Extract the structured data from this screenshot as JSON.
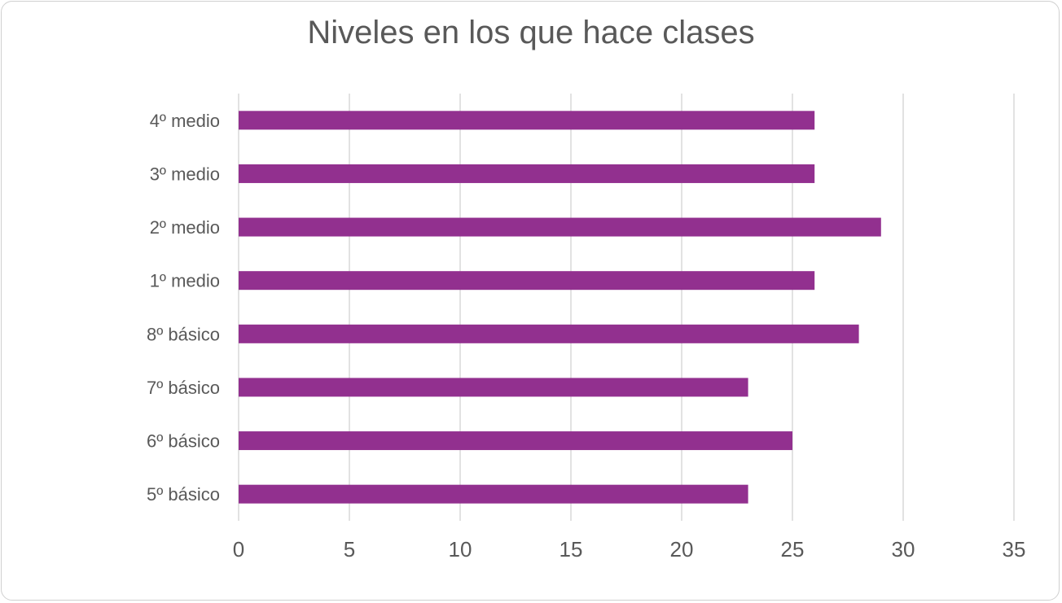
{
  "chart_data": {
    "type": "bar",
    "orientation": "horizontal",
    "title": "Niveles en los que hace clases",
    "xlabel": "",
    "ylabel": "",
    "categories": [
      "5º básico",
      "6º básico",
      "7º básico",
      "8º básico",
      "1º medio",
      "2º medio",
      "3º medio",
      "4º medio"
    ],
    "values": [
      23,
      25,
      23,
      28,
      26,
      29,
      26,
      26
    ],
    "xlim": [
      0,
      35
    ],
    "x_ticks": [
      0,
      5,
      10,
      15,
      20,
      25,
      30,
      35
    ],
    "grid": true,
    "legend": "none",
    "bar_color": "#92308f",
    "grid_color": "#d9d9d9",
    "text_color": "#595959"
  }
}
